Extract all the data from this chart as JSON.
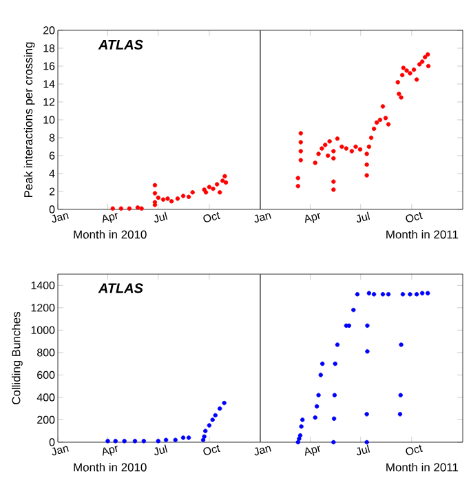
{
  "chart_data": [
    {
      "type": "scatter",
      "ylabel": "Peak interactions per crossing",
      "xlabel": "Month in 2010",
      "annotations": [
        "ATLAS",
        "Month in 2011"
      ],
      "color": "#ff0000",
      "marker": "circle",
      "ref_lines": [
        {
          "axis": "x",
          "value": "2011-01-01",
          "color": "#555555"
        }
      ],
      "xlim": [
        "2010-01-01",
        "2012-01-01"
      ],
      "xticks": [
        {
          "value": "2010-01-01",
          "label": "Jan"
        },
        {
          "value": "2010-04-01",
          "label": "Apr"
        },
        {
          "value": "2010-07-01",
          "label": "Jul"
        },
        {
          "value": "2010-10-01",
          "label": "Oct"
        },
        {
          "value": "2011-01-01",
          "label": "Jan"
        },
        {
          "value": "2011-04-01",
          "label": "Apr"
        },
        {
          "value": "2011-07-01",
          "label": "Jul"
        },
        {
          "value": "2011-10-01",
          "label": "Oct"
        }
      ],
      "ylim": [
        0,
        20
      ],
      "yticks": [
        0,
        2,
        4,
        6,
        8,
        10,
        12,
        14,
        16,
        18,
        20
      ],
      "x": [
        "2010-04-10",
        "2010-04-25",
        "2010-05-10",
        "2010-05-25",
        "2010-06-01",
        "2010-06-25",
        "2010-06-25",
        "2010-06-25",
        "2010-06-25",
        "2010-07-01",
        "2010-07-10",
        "2010-07-18",
        "2010-07-25",
        "2010-08-05",
        "2010-08-15",
        "2010-08-25",
        "2010-09-01",
        "2010-09-22",
        "2010-09-25",
        "2010-10-01",
        "2010-10-08",
        "2010-10-15",
        "2010-10-20",
        "2010-10-25",
        "2010-10-29",
        "2010-10-31",
        "2011-03-10",
        "2011-03-10",
        "2011-03-15",
        "2011-03-15",
        "2011-03-15",
        "2011-03-15",
        "2011-04-10",
        "2011-04-16",
        "2011-04-22",
        "2011-04-28",
        "2011-05-03",
        "2011-05-06",
        "2011-05-13",
        "2011-05-13",
        "2011-05-13",
        "2011-05-13",
        "2011-05-20",
        "2011-05-28",
        "2011-06-05",
        "2011-06-15",
        "2011-06-22",
        "2011-06-30",
        "2011-07-12",
        "2011-07-12",
        "2011-07-12",
        "2011-07-16",
        "2011-07-20",
        "2011-07-25",
        "2011-07-30",
        "2011-08-05",
        "2011-08-10",
        "2011-08-15",
        "2011-08-20",
        "2011-09-06",
        "2011-09-08",
        "2011-09-12",
        "2011-09-14",
        "2011-09-16",
        "2011-09-22",
        "2011-09-28",
        "2011-10-05",
        "2011-10-10",
        "2011-10-15",
        "2011-10-20",
        "2011-10-25",
        "2011-10-30",
        "2011-10-31"
      ],
      "values": [
        0.1,
        0.1,
        0.1,
        0.2,
        0.1,
        2.7,
        1.8,
        0.8,
        0.5,
        1.3,
        1.1,
        1.2,
        0.9,
        1.2,
        1.5,
        1.4,
        1.9,
        2.2,
        1.9,
        2.5,
        2.3,
        2.8,
        1.9,
        3.2,
        3.7,
        3.0,
        2.6,
        3.5,
        5.5,
        6.5,
        7.5,
        8.5,
        5.2,
        6.2,
        6.8,
        7.2,
        6.0,
        7.6,
        2.2,
        3.1,
        5.7,
        6.5,
        7.9,
        7.0,
        6.8,
        6.5,
        7.0,
        6.7,
        3.8,
        5.0,
        6.2,
        7.0,
        8.0,
        9.0,
        9.7,
        10.0,
        11.5,
        10.2,
        9.5,
        14.2,
        12.9,
        12.5,
        15.0,
        15.8,
        15.5,
        15.2,
        15.6,
        14.5,
        16.2,
        16.5,
        17.0,
        17.3,
        16.0
      ]
    },
    {
      "type": "scatter",
      "ylabel": "Colliding Bunches",
      "xlabel": "Month in 2010",
      "annotations": [
        "ATLAS",
        "Month in 2011"
      ],
      "color": "#0000ff",
      "marker": "circle",
      "ref_lines": [
        {
          "axis": "x",
          "value": "2011-01-01",
          "color": "#555555"
        }
      ],
      "xlim": [
        "2010-01-01",
        "2012-01-01"
      ],
      "xticks": [
        {
          "value": "2010-01-01",
          "label": "Jan"
        },
        {
          "value": "2010-04-01",
          "label": "Apr"
        },
        {
          "value": "2010-07-01",
          "label": "Jul"
        },
        {
          "value": "2010-10-01",
          "label": "Oct"
        },
        {
          "value": "2011-01-01",
          "label": "Jan"
        },
        {
          "value": "2011-04-01",
          "label": "Apr"
        },
        {
          "value": "2011-07-01",
          "label": "Jul"
        },
        {
          "value": "2011-10-01",
          "label": "Oct"
        }
      ],
      "ylim": [
        0,
        1500
      ],
      "yticks": [
        0,
        200,
        400,
        600,
        800,
        1000,
        1200,
        1400
      ],
      "x": [
        "2010-04-01",
        "2010-04-15",
        "2010-05-01",
        "2010-05-20",
        "2010-06-05",
        "2010-07-01",
        "2010-07-15",
        "2010-08-01",
        "2010-08-15",
        "2010-08-25",
        "2010-09-20",
        "2010-09-22",
        "2010-09-24",
        "2010-10-01",
        "2010-10-07",
        "2010-10-12",
        "2010-10-20",
        "2010-10-28",
        "2011-03-10",
        "2011-03-12",
        "2011-03-14",
        "2011-03-16",
        "2011-03-18",
        "2011-04-10",
        "2011-04-13",
        "2011-04-16",
        "2011-04-20",
        "2011-04-23",
        "2011-05-13",
        "2011-05-14",
        "2011-05-15",
        "2011-05-16",
        "2011-05-20",
        "2011-06-05",
        "2011-06-10",
        "2011-06-18",
        "2011-06-25",
        "2011-07-12",
        "2011-07-12",
        "2011-07-13",
        "2011-07-13",
        "2011-07-16",
        "2011-07-25",
        "2011-08-10",
        "2011-08-20",
        "2011-09-10",
        "2011-09-11",
        "2011-09-12",
        "2011-09-15",
        "2011-09-28",
        "2011-10-10",
        "2011-10-20",
        "2011-10-30"
      ],
      "values": [
        10,
        10,
        10,
        10,
        10,
        10,
        20,
        20,
        40,
        40,
        20,
        50,
        100,
        150,
        200,
        240,
        300,
        350,
        0,
        30,
        60,
        140,
        200,
        220,
        320,
        420,
        600,
        700,
        0,
        210,
        420,
        700,
        870,
        1040,
        1040,
        1180,
        1320,
        0,
        250,
        810,
        1040,
        1330,
        1320,
        1320,
        1320,
        250,
        420,
        870,
        1320,
        1320,
        1320,
        1330,
        1330
      ]
    }
  ]
}
